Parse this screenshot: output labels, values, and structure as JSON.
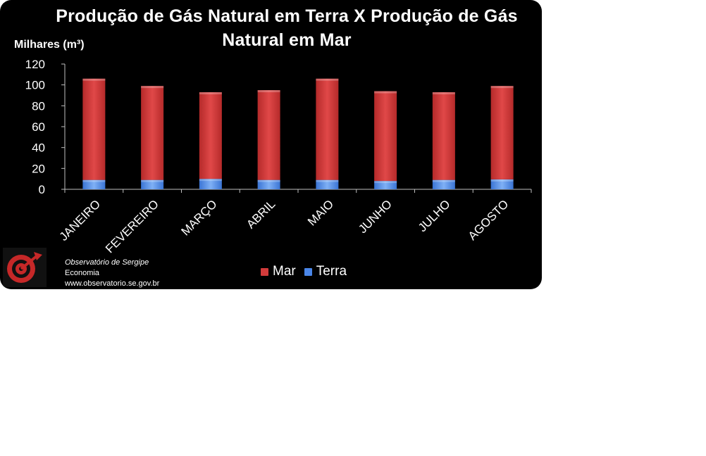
{
  "chart_data": {
    "type": "bar",
    "stacked": true,
    "title": "Produção de Gás Natural em Terra X Produção de Gás Natural em Mar",
    "ylabel": "Milhares (m³)",
    "xlabel": "",
    "ylim": [
      0,
      120
    ],
    "yticks": [
      0,
      20,
      40,
      60,
      80,
      100,
      120
    ],
    "grid": false,
    "legend_position": "bottom",
    "categories": [
      "JANEIRO",
      "FEVEREIRO",
      "MARÇO",
      "ABRIL",
      "MAIO",
      "JUNHO",
      "JULHO",
      "AGOSTO"
    ],
    "series": [
      {
        "name": "Terra",
        "color": "#4a86e8",
        "values": [
          9,
          9,
          10,
          9,
          9,
          8,
          9,
          9.5
        ]
      },
      {
        "name": "Mar",
        "color": "#d23b3b",
        "values": [
          97,
          90,
          83,
          86,
          97,
          86,
          84,
          89.5
        ]
      }
    ]
  },
  "legend": {
    "items": [
      "Mar",
      "Terra"
    ]
  },
  "footer": {
    "org": "Observatório de Sergipe",
    "section": "Economia",
    "url": "www.observatorio.se.gov.br"
  }
}
